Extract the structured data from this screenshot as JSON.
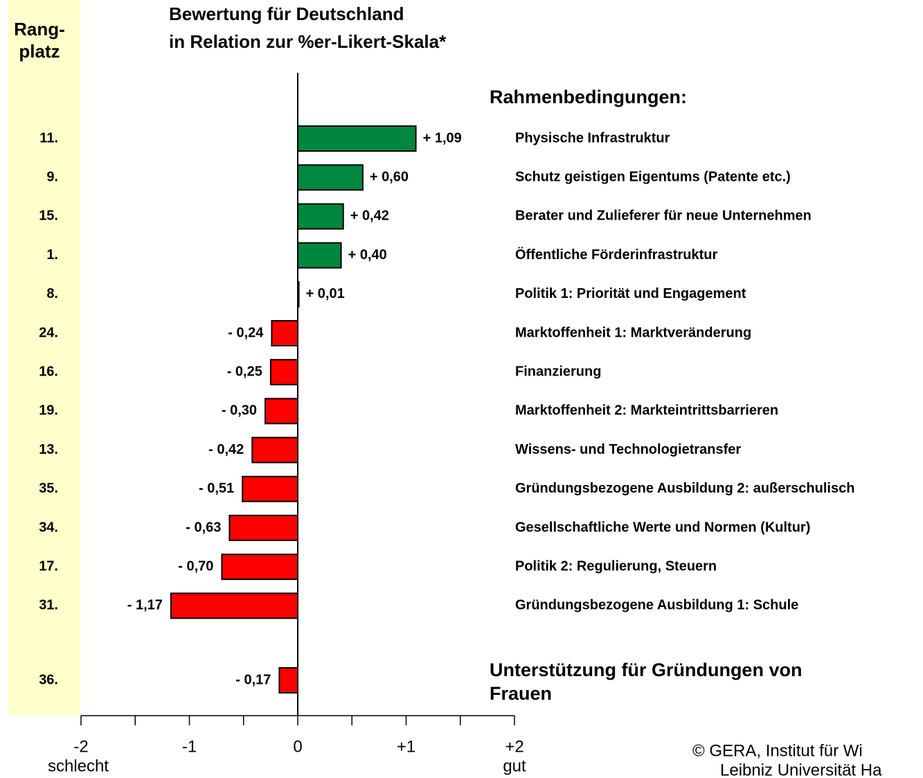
{
  "chart_data": {
    "type": "hbar",
    "title": [
      "Bewertung für Deutschland",
      "in Relation zur %er-Likert-Skala*"
    ],
    "rank_header": [
      "Rang-",
      "platz"
    ],
    "section_header": "Rahmenbedingungen:",
    "categories": [
      "Physische Infrastruktur",
      "Schutz geistigen Eigentums (Patente etc.)",
      "Berater und Zulieferer für neue Unternehmen",
      "Öffentliche Förderinfrastruktur",
      "Politik 1: Priorität und Engagement",
      "Marktoffenheit 1: Marktveränderung",
      "Finanzierung",
      "Marktoffenheit 2: Markteintrittsbarrieren",
      "Wissens- und Technologietransfer",
      "Gründungsbezogene Ausbildung 2: außerschulisch",
      "Gesellschaftliche Werte und Normen (Kultur)",
      "Politik 2: Regulierung, Steuern",
      "Gründungsbezogene Ausbildung 1: Schule",
      "Unterstützung für Gründungen von Frauen"
    ],
    "ranks": [
      "11.",
      "9.",
      "15.",
      "1.",
      "8.",
      "24.",
      "16.",
      "19.",
      "13.",
      "35.",
      "34.",
      "17.",
      "31.",
      "36."
    ],
    "values": [
      1.09,
      0.6,
      0.42,
      0.4,
      0.01,
      -0.24,
      -0.25,
      -0.3,
      -0.42,
      -0.51,
      -0.63,
      -0.7,
      -1.17,
      -0.17
    ],
    "value_labels": [
      "+ 1,09",
      "+ 0,60",
      "+ 0,42",
      "+ 0,40",
      "+ 0,01",
      "- 0,24",
      "- 0,25",
      "- 0,30",
      "- 0,42",
      "- 0,51",
      "- 0,63",
      "- 0,70",
      "- 1,17",
      "- 0,17"
    ],
    "positive_color": "#00873f",
    "negative_color": "#ff0000",
    "xlim": [
      -2,
      2
    ],
    "xticks": [
      -2,
      -1,
      0,
      {
        "value": 1,
        "label": "+1"
      },
      {
        "value": 2,
        "label": "+2"
      }
    ],
    "xminor": [
      -1.5,
      -0.5,
      0.5,
      1.5
    ],
    "x_low_label": "schlecht",
    "x_high_label": "gut",
    "copyright": [
      "© GERA, Institut für Wi",
      "Leibniz Universität Ha"
    ]
  }
}
